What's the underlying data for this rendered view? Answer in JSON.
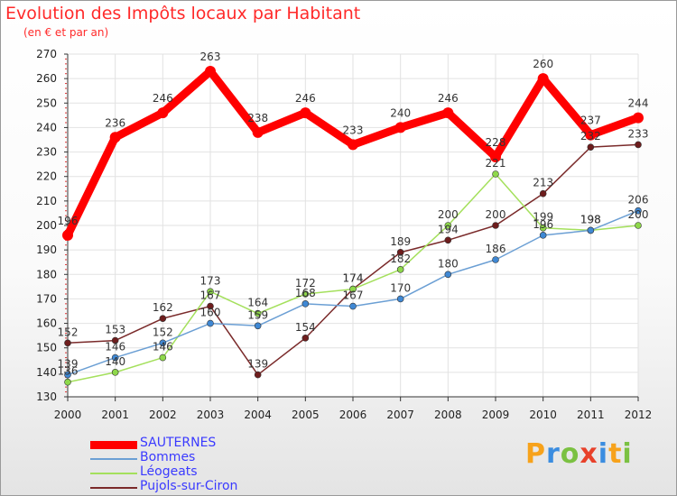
{
  "title": "Evolution des Impôts locaux par Habitant",
  "subtitle": "(en € et par an)",
  "brand": {
    "letters": [
      "P",
      "r",
      "o",
      "x",
      "i",
      "t",
      "i"
    ],
    "colors": [
      "#f7a21b",
      "#3b8de0",
      "#7bc142",
      "#e8412a",
      "#3b8de0",
      "#f7a21b",
      "#7bc142"
    ]
  },
  "chart_data": {
    "type": "line",
    "x": [
      "2000",
      "2001",
      "2002",
      "2003",
      "2004",
      "2005",
      "2006",
      "2007",
      "2008",
      "2009",
      "2010",
      "2011",
      "2012"
    ],
    "ylim": [
      130,
      270
    ],
    "yticks": [
      130,
      140,
      150,
      160,
      170,
      180,
      190,
      200,
      210,
      220,
      230,
      240,
      250,
      260,
      270
    ],
    "grid": "horizontal",
    "legend": "bottom-left",
    "series": [
      {
        "name": "SAUTERNES",
        "color": "#ff0000",
        "marker": "#ff0000",
        "values": [
          196,
          236,
          246,
          263,
          238,
          246,
          233,
          240,
          246,
          228,
          260,
          237,
          244
        ],
        "labels": [
          "196",
          "236",
          "246",
          "263",
          "238",
          "246",
          "233",
          "240",
          "246",
          "228",
          "260",
          "237",
          "244"
        ]
      },
      {
        "name": "Bommes",
        "color": "#6b9fd4",
        "marker": "#3f88d4",
        "values": [
          139,
          146,
          152,
          160,
          159,
          168,
          167,
          170,
          180,
          186,
          196,
          198,
          206
        ],
        "labels": [
          "139",
          "146",
          "152",
          "160",
          "159",
          "168",
          "167",
          "170",
          "180",
          "186",
          "196",
          "198",
          "206"
        ]
      },
      {
        "name": "Léogeats",
        "color": "#a4e05c",
        "marker": "#8ed84a",
        "values": [
          136,
          140,
          146,
          173,
          164,
          172,
          174,
          182,
          200,
          221,
          199,
          198,
          200
        ],
        "labels": [
          "136",
          "140",
          "146",
          "173",
          "164",
          "172",
          "174",
          "182",
          "200",
          "221",
          "199",
          "198",
          "200"
        ]
      },
      {
        "name": "Pujols-sur-Ciron",
        "color": "#7a2a2a",
        "marker": "#6e1d1d",
        "values": [
          152,
          153,
          162,
          167,
          139,
          154,
          174,
          189,
          194,
          200,
          213,
          232,
          233
        ],
        "labels": [
          "152",
          "153",
          "162",
          "167",
          "139",
          "154",
          "174",
          "189",
          "194",
          "200",
          "213",
          "232",
          "233"
        ]
      }
    ]
  }
}
